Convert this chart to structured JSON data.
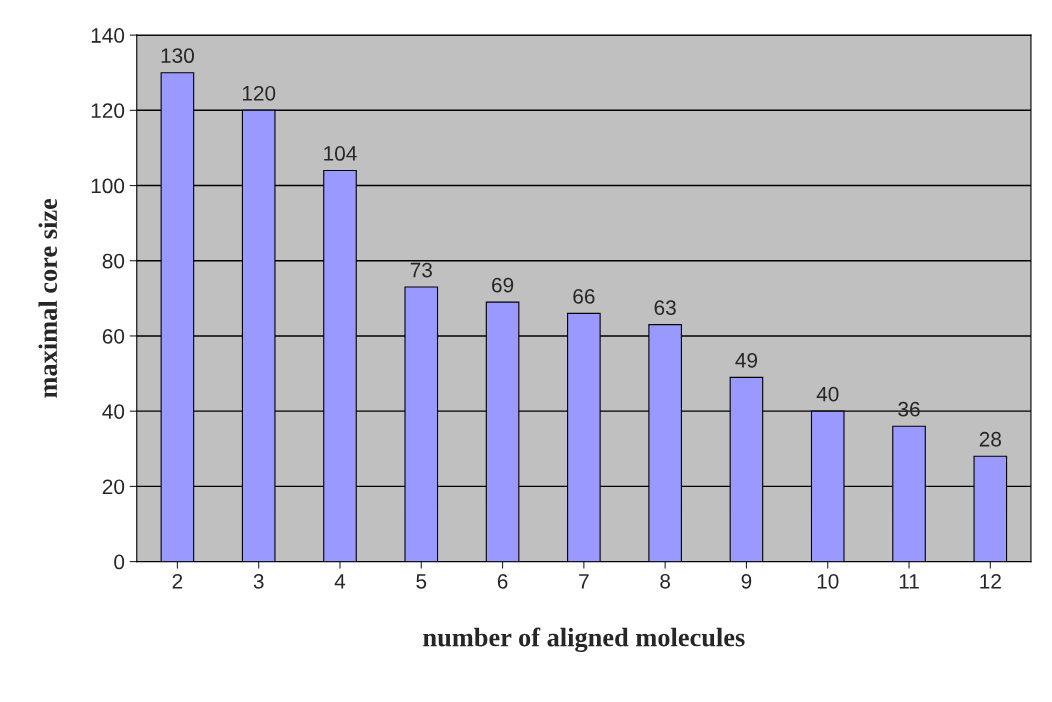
{
  "chart_data": {
    "type": "bar",
    "xlabel": "number of aligned molecules",
    "ylabel": "maximal core size",
    "categories": [
      "2",
      "3",
      "4",
      "5",
      "6",
      "7",
      "8",
      "9",
      "10",
      "11",
      "12"
    ],
    "values": [
      130,
      120,
      104,
      73,
      69,
      66,
      63,
      49,
      40,
      36,
      28
    ],
    "color": "#9999ff",
    "ylim": [
      0,
      140
    ],
    "yticks": [
      0,
      20,
      40,
      60,
      80,
      100,
      120,
      140
    ],
    "grid": "y",
    "data_labels": true
  }
}
